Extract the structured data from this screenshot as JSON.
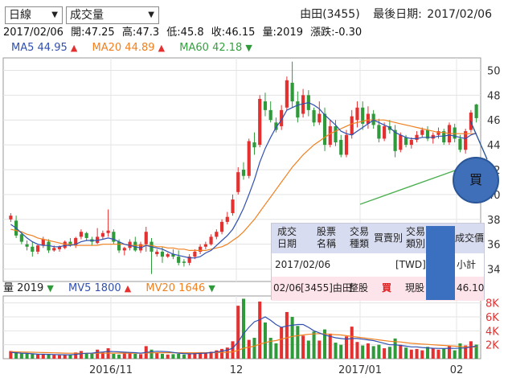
{
  "controls": {
    "chart_type": "日線",
    "indicator": "成交量"
  },
  "header": {
    "stock": "由田(3455)",
    "last_date_label": "最後日期:",
    "last_date": "2017/02/06"
  },
  "quote": {
    "date": "2017/02/06",
    "open": "開:47.25",
    "high": "高:47.3",
    "low": "低:45.8",
    "close": "收:46.15",
    "volume": "量:2019",
    "change": "漲跌:-0.30"
  },
  "ma": {
    "ma5_label": "MA5",
    "ma5_value": "44.95",
    "ma5_dir": "▲",
    "ma20_label": "MA20",
    "ma20_value": "44.89",
    "ma20_dir": "▲",
    "ma60_label": "MA60",
    "ma60_value": "42.18",
    "ma60_dir": "▼"
  },
  "volume_info": {
    "vol_label": "量",
    "vol_value": "2019",
    "vol_dir": "▼",
    "mv5_label": "MV5",
    "mv5_value": "1800",
    "mv5_dir": "▲",
    "mv20_label": "MV20",
    "mv20_value": "1646",
    "mv20_dir": "▼"
  },
  "trade_popup": {
    "headers": [
      [
        "成交",
        "日期"
      ],
      [
        "股票",
        "名稱"
      ],
      [
        "交易",
        "種類"
      ],
      [
        "買賣別",
        ""
      ],
      [
        "交易",
        "類別"
      ],
      [
        "成交價",
        ""
      ]
    ],
    "row1": {
      "date": "2017/02/06",
      "currency": "[TWD]新",
      "subtotal": "小計"
    },
    "row2": {
      "date": "02/06",
      "stock": "[3455]由田",
      "kind": "整股",
      "side": "買",
      "category": "現股",
      "price": "46.10"
    }
  },
  "buy_button": "買",
  "colors": {
    "up": "#e53030",
    "down": "#2f9a3a",
    "ma5": "#3050b0",
    "ma20": "#f08020",
    "ma60": "#36a040"
  },
  "chart_data": [
    {
      "type": "candlestick",
      "title": "",
      "x_tick_labels": [
        "2016/11",
        "12",
        "2017/01",
        "02"
      ],
      "y_tick_labels": [
        "34",
        "36",
        "38",
        "40",
        "42",
        "44",
        "46",
        "48",
        "50"
      ],
      "ylim": [
        33,
        51
      ],
      "candles": [
        [
          38.0,
          38.5,
          37.8,
          38.3
        ],
        [
          37.9,
          38.3,
          36.5,
          36.7
        ],
        [
          36.8,
          37.0,
          36.0,
          36.2
        ],
        [
          36.0,
          36.3,
          35.5,
          35.8
        ],
        [
          35.8,
          36.2,
          35.0,
          35.4
        ],
        [
          35.4,
          36.0,
          35.2,
          35.9
        ],
        [
          35.9,
          36.6,
          35.7,
          36.4
        ],
        [
          36.2,
          36.4,
          35.3,
          35.5
        ],
        [
          35.5,
          35.9,
          35.4,
          35.7
        ],
        [
          35.6,
          35.9,
          35.4,
          35.8
        ],
        [
          35.7,
          36.3,
          35.6,
          36.2
        ],
        [
          36.2,
          36.5,
          35.8,
          35.9
        ],
        [
          35.9,
          36.6,
          35.7,
          36.5
        ],
        [
          36.6,
          37.2,
          36.4,
          37.0
        ],
        [
          36.9,
          37.0,
          36.3,
          36.5
        ],
        [
          36.4,
          36.6,
          35.9,
          36.2
        ],
        [
          36.1,
          37.3,
          36.0,
          36.6
        ],
        [
          36.6,
          37.1,
          36.4,
          36.9
        ],
        [
          36.9,
          38.8,
          36.6,
          37.1
        ],
        [
          37.0,
          37.2,
          36.0,
          36.2
        ],
        [
          36.2,
          36.4,
          35.3,
          35.5
        ],
        [
          35.5,
          35.8,
          35.1,
          35.7
        ],
        [
          35.7,
          36.4,
          35.5,
          36.2
        ],
        [
          36.2,
          36.6,
          35.4,
          35.5
        ],
        [
          35.5,
          36.2,
          35.3,
          36.0
        ],
        [
          36.0,
          37.4,
          35.4,
          37.0
        ],
        [
          36.2,
          36.5,
          33.6,
          35.4
        ],
        [
          35.2,
          35.6,
          35.0,
          35.4
        ],
        [
          35.4,
          35.8,
          34.5,
          35.0
        ],
        [
          35.0,
          35.3,
          34.9,
          35.2
        ],
        [
          35.2,
          35.6,
          34.8,
          35.0
        ],
        [
          35.0,
          35.5,
          34.3,
          34.5
        ],
        [
          34.6,
          34.8,
          34.2,
          34.5
        ],
        [
          34.5,
          35.2,
          34.3,
          35.0
        ],
        [
          35.0,
          35.6,
          34.8,
          35.4
        ],
        [
          35.4,
          36.0,
          35.2,
          35.8
        ],
        [
          35.8,
          36.2,
          35.6,
          36.0
        ],
        [
          36.0,
          36.8,
          35.9,
          36.6
        ],
        [
          36.6,
          37.2,
          36.4,
          37.0
        ],
        [
          37.0,
          38.0,
          36.8,
          37.8
        ],
        [
          37.8,
          38.6,
          37.6,
          38.2
        ],
        [
          38.5,
          40.0,
          38.3,
          39.6
        ],
        [
          40.2,
          42.2,
          40.0,
          41.8
        ],
        [
          42.0,
          42.6,
          41.2,
          41.5
        ],
        [
          41.5,
          44.5,
          41.3,
          44.3
        ],
        [
          44.2,
          45.0,
          43.2,
          43.8
        ],
        [
          44.0,
          48.0,
          43.8,
          47.7
        ],
        [
          47.5,
          48.2,
          46.3,
          46.8
        ],
        [
          46.8,
          47.5,
          45.8,
          46.0
        ],
        [
          45.8,
          46.2,
          45.0,
          45.2
        ],
        [
          45.5,
          47.2,
          45.2,
          46.8
        ],
        [
          47.0,
          49.5,
          46.8,
          49.2
        ],
        [
          49.0,
          50.7,
          47.0,
          47.5
        ],
        [
          47.5,
          48.3,
          45.8,
          46.2
        ],
        [
          46.5,
          48.5,
          46.2,
          48.0
        ],
        [
          48.0,
          48.4,
          46.3,
          46.8
        ],
        [
          46.8,
          47.0,
          45.5,
          45.8
        ],
        [
          45.8,
          47.5,
          45.6,
          46.5
        ],
        [
          46.5,
          47.0,
          43.5,
          44.0
        ],
        [
          44.0,
          46.0,
          43.8,
          45.5
        ],
        [
          45.5,
          46.0,
          43.9,
          44.2
        ],
        [
          44.4,
          44.8,
          43.0,
          43.2
        ],
        [
          43.2,
          45.2,
          43.0,
          44.8
        ],
        [
          44.8,
          46.8,
          44.5,
          46.3
        ],
        [
          46.0,
          47.5,
          45.4,
          47.0
        ],
        [
          47.0,
          47.5,
          45.2,
          45.7
        ],
        [
          45.7,
          47.1,
          45.3,
          46.5
        ],
        [
          46.5,
          46.8,
          45.3,
          45.6
        ],
        [
          45.6,
          46.1,
          44.2,
          44.5
        ],
        [
          44.5,
          45.8,
          44.3,
          45.5
        ],
        [
          45.5,
          46.0,
          44.9,
          45.2
        ],
        [
          45.2,
          45.6,
          43.0,
          43.5
        ],
        [
          43.6,
          45.0,
          43.4,
          44.8
        ],
        [
          44.6,
          44.8,
          43.8,
          44.0
        ],
        [
          44.0,
          44.6,
          43.7,
          44.4
        ],
        [
          44.4,
          45.1,
          44.2,
          44.8
        ],
        [
          44.8,
          45.4,
          44.6,
          45.2
        ],
        [
          45.2,
          45.5,
          44.3,
          44.5
        ],
        [
          44.5,
          45.0,
          44.1,
          44.8
        ],
        [
          44.8,
          45.4,
          44.5,
          45.1
        ],
        [
          45.1,
          45.3,
          44.0,
          44.2
        ],
        [
          44.2,
          45.8,
          44.0,
          45.6
        ],
        [
          45.4,
          45.7,
          44.2,
          44.5
        ],
        [
          44.5,
          44.8,
          43.4,
          43.6
        ],
        [
          43.6,
          45.3,
          43.3,
          45.1
        ],
        [
          45.2,
          46.8,
          45.0,
          46.6
        ],
        [
          47.25,
          47.3,
          45.8,
          46.15
        ]
      ],
      "ma5": [
        37.6,
        37.3,
        36.9,
        36.5,
        36.2,
        36.0,
        35.9,
        35.9,
        35.8,
        35.8,
        35.9,
        35.9,
        36.0,
        36.2,
        36.3,
        36.3,
        36.3,
        36.4,
        36.5,
        36.4,
        36.2,
        36.0,
        35.9,
        35.8,
        35.7,
        35.9,
        35.8,
        35.7,
        35.6,
        35.4,
        35.2,
        35.1,
        35.0,
        34.9,
        34.9,
        35.0,
        35.3,
        35.5,
        35.9,
        36.3,
        36.7,
        37.2,
        38.0,
        38.9,
        40.0,
        41.2,
        42.6,
        43.7,
        44.6,
        45.4,
        46.0,
        46.8,
        47.0,
        47.2,
        47.3,
        47.4,
        47.2,
        46.9,
        46.4,
        46.0,
        45.6,
        45.1,
        44.9,
        44.8,
        45.1,
        45.4,
        45.7,
        46.0,
        45.8,
        45.6,
        45.4,
        45.0,
        44.8,
        44.6,
        44.5,
        44.5,
        44.6,
        44.6,
        44.6,
        44.7,
        44.7,
        44.8,
        44.7,
        44.6,
        44.5,
        44.8,
        44.95
      ],
      "ma20": [
        37.2,
        37.1,
        37.0,
        36.8,
        36.7,
        36.5,
        36.4,
        36.3,
        36.2,
        36.1,
        36.0,
        36.0,
        35.9,
        35.9,
        35.9,
        35.9,
        35.9,
        36.0,
        36.0,
        36.0,
        36.0,
        36.0,
        35.9,
        35.9,
        35.9,
        35.9,
        35.9,
        35.8,
        35.8,
        35.7,
        35.7,
        35.6,
        35.6,
        35.5,
        35.5,
        35.5,
        35.5,
        35.6,
        35.7,
        35.8,
        36.0,
        36.3,
        36.6,
        37.0,
        37.5,
        38.0,
        38.6,
        39.2,
        39.8,
        40.4,
        41.0,
        41.6,
        42.2,
        42.7,
        43.2,
        43.6,
        44.0,
        44.3,
        44.6,
        44.9,
        45.1,
        45.3,
        45.5,
        45.7,
        45.8,
        45.9,
        46.0,
        46.0,
        46.0,
        46.0,
        45.9,
        45.8,
        45.7,
        45.6,
        45.5,
        45.4,
        45.3,
        45.2,
        45.1,
        45.0,
        45.0,
        44.9,
        44.9,
        44.9,
        44.9,
        44.9,
        44.89
      ],
      "vol_ylim": [
        0,
        9000
      ],
      "vol_tick_labels": [
        "2K",
        "4K",
        "6K",
        "8K"
      ],
      "volumes": [
        1100,
        900,
        800,
        700,
        650,
        600,
        700,
        600,
        550,
        500,
        600,
        550,
        900,
        1100,
        800,
        700,
        1300,
        900,
        1500,
        700,
        600,
        800,
        900,
        700,
        650,
        1800,
        1300,
        800,
        700,
        600,
        650,
        700,
        600,
        700,
        800,
        900,
        850,
        1000,
        1200,
        1400,
        1600,
        2500,
        7600,
        8600,
        2700,
        3000,
        8200,
        5200,
        3000,
        2200,
        4500,
        6700,
        6000,
        4700,
        3300,
        2600,
        3900,
        2600,
        4200,
        3600,
        2300,
        2000,
        3200,
        4600,
        2400,
        1900,
        2200,
        1800,
        2000,
        1500,
        1700,
        2900,
        2000,
        1600,
        1300,
        1400,
        1200,
        1700,
        1500,
        1300,
        1400,
        1800,
        1200,
        2200,
        1900,
        2500,
        2019
      ],
      "mv5": [
        900,
        850,
        800,
        760,
        700,
        650,
        640,
        620,
        600,
        580,
        570,
        560,
        620,
        720,
        780,
        800,
        900,
        960,
        1040,
        1020,
        980,
        940,
        900,
        860,
        800,
        900,
        1000,
        1060,
        1040,
        1000,
        900,
        800,
        740,
        700,
        720,
        760,
        800,
        880,
        960,
        1080,
        1240,
        1500,
        2400,
        3600,
        4500,
        5300,
        5600,
        6000,
        5500,
        4900,
        4500,
        4700,
        4800,
        4900,
        4900,
        4500,
        4000,
        3700,
        3400,
        3200,
        3000,
        2900,
        2800,
        2900,
        2900,
        2800,
        2700,
        2600,
        2400,
        2200,
        2000,
        2000,
        1900,
        1800,
        1700,
        1700,
        1600,
        1550,
        1500,
        1480,
        1450,
        1500,
        1480,
        1520,
        1550,
        1700,
        1800
      ],
      "mv20": [
        1000,
        980,
        960,
        940,
        920,
        900,
        880,
        860,
        840,
        820,
        800,
        790,
        780,
        770,
        770,
        770,
        780,
        790,
        800,
        800,
        800,
        800,
        800,
        800,
        800,
        820,
        840,
        850,
        850,
        850,
        850,
        850,
        850,
        850,
        850,
        860,
        860,
        870,
        880,
        900,
        920,
        980,
        1200,
        1500,
        1650,
        1800,
        2100,
        2300,
        2500,
        2600,
        2800,
        3000,
        3200,
        3300,
        3400,
        3500,
        3550,
        3600,
        3550,
        3500,
        3450,
        3400,
        3300,
        3200,
        3100,
        3000,
        2900,
        2800,
        2700,
        2600,
        2500,
        2450,
        2400,
        2300,
        2200,
        2150,
        2100,
        2050,
        2000,
        1950,
        1900,
        1850,
        1800,
        1750,
        1700,
        1680,
        1646
      ]
    }
  ]
}
